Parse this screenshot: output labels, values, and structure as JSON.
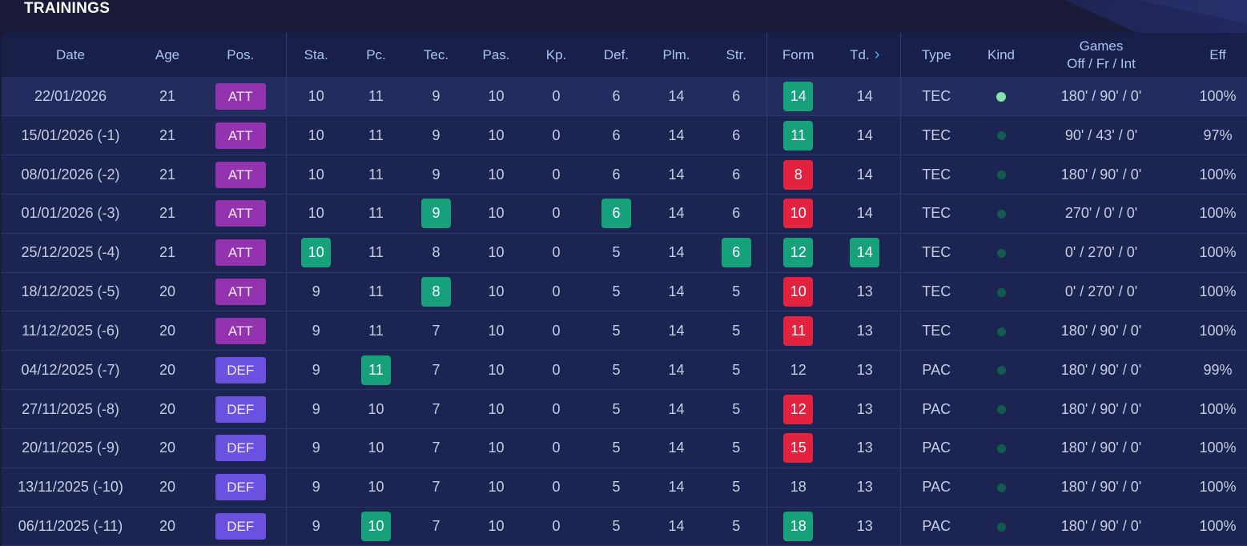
{
  "title": "TRAININGS",
  "headers": {
    "date": "Date",
    "age": "Age",
    "pos": "Pos.",
    "sta": "Sta.",
    "pc": "Pc.",
    "tec": "Tec.",
    "pas": "Pas.",
    "kp": "Kp.",
    "def": "Def.",
    "plm": "Plm.",
    "str": "Str.",
    "form": "Form",
    "td": "Td.",
    "type": "Type",
    "kind": "Kind",
    "games_line1": "Games",
    "games_line2": "Off / Fr / Int",
    "eff": "Eff"
  },
  "colors": {
    "att": "#9333b0",
    "def": "#6a51e0",
    "up": "#17a17a",
    "down": "#e3223f",
    "kind_active": "#86e2ad",
    "kind_inactive": "#145c4d"
  },
  "rows": [
    {
      "date": "22/01/2026",
      "age": "21",
      "pos": "ATT",
      "sta": "10",
      "pc": "11",
      "tec": "9",
      "pas": "10",
      "kp": "0",
      "def": "6",
      "plm": "14",
      "str": "6",
      "form": "14",
      "td": "14",
      "type": "TEC",
      "games": "180' / 90' / 0'",
      "eff": "100%",
      "kind": "active",
      "hl": {
        "form": "g"
      }
    },
    {
      "date": "15/01/2026 (-1)",
      "age": "21",
      "pos": "ATT",
      "sta": "10",
      "pc": "11",
      "tec": "9",
      "pas": "10",
      "kp": "0",
      "def": "6",
      "plm": "14",
      "str": "6",
      "form": "11",
      "td": "14",
      "type": "TEC",
      "games": "90' / 43' / 0'",
      "eff": "97%",
      "kind": "inactive",
      "hl": {
        "form": "g"
      }
    },
    {
      "date": "08/01/2026 (-2)",
      "age": "21",
      "pos": "ATT",
      "sta": "10",
      "pc": "11",
      "tec": "9",
      "pas": "10",
      "kp": "0",
      "def": "6",
      "plm": "14",
      "str": "6",
      "form": "8",
      "td": "14",
      "type": "TEC",
      "games": "180' / 90' / 0'",
      "eff": "100%",
      "kind": "inactive",
      "hl": {
        "form": "r"
      }
    },
    {
      "date": "01/01/2026 (-3)",
      "age": "21",
      "pos": "ATT",
      "sta": "10",
      "pc": "11",
      "tec": "9",
      "pas": "10",
      "kp": "0",
      "def": "6",
      "plm": "14",
      "str": "6",
      "form": "10",
      "td": "14",
      "type": "TEC",
      "games": "270' / 0' / 0'",
      "eff": "100%",
      "kind": "inactive",
      "hl": {
        "tec": "g",
        "def": "g",
        "form": "r"
      }
    },
    {
      "date": "25/12/2025 (-4)",
      "age": "21",
      "pos": "ATT",
      "sta": "10",
      "pc": "11",
      "tec": "8",
      "pas": "10",
      "kp": "0",
      "def": "5",
      "plm": "14",
      "str": "6",
      "form": "12",
      "td": "14",
      "type": "TEC",
      "games": "0' / 270' / 0'",
      "eff": "100%",
      "kind": "inactive",
      "hl": {
        "sta": "g",
        "str": "g",
        "form": "g",
        "td": "g"
      }
    },
    {
      "date": "18/12/2025 (-5)",
      "age": "20",
      "pos": "ATT",
      "sta": "9",
      "pc": "11",
      "tec": "8",
      "pas": "10",
      "kp": "0",
      "def": "5",
      "plm": "14",
      "str": "5",
      "form": "10",
      "td": "13",
      "type": "TEC",
      "games": "0' / 270' / 0'",
      "eff": "100%",
      "kind": "inactive",
      "hl": {
        "tec": "g",
        "form": "r"
      }
    },
    {
      "date": "11/12/2025 (-6)",
      "age": "20",
      "pos": "ATT",
      "sta": "9",
      "pc": "11",
      "tec": "7",
      "pas": "10",
      "kp": "0",
      "def": "5",
      "plm": "14",
      "str": "5",
      "form": "11",
      "td": "13",
      "type": "TEC",
      "games": "180' / 90' / 0'",
      "eff": "100%",
      "kind": "inactive",
      "hl": {
        "form": "r"
      }
    },
    {
      "date": "04/12/2025 (-7)",
      "age": "20",
      "pos": "DEF",
      "sta": "9",
      "pc": "11",
      "tec": "7",
      "pas": "10",
      "kp": "0",
      "def": "5",
      "plm": "14",
      "str": "5",
      "form": "12",
      "td": "13",
      "type": "PAC",
      "games": "180' / 90' / 0'",
      "eff": "99%",
      "kind": "inactive",
      "hl": {
        "pc": "g"
      }
    },
    {
      "date": "27/11/2025 (-8)",
      "age": "20",
      "pos": "DEF",
      "sta": "9",
      "pc": "10",
      "tec": "7",
      "pas": "10",
      "kp": "0",
      "def": "5",
      "plm": "14",
      "str": "5",
      "form": "12",
      "td": "13",
      "type": "PAC",
      "games": "180' / 90' / 0'",
      "eff": "100%",
      "kind": "inactive",
      "hl": {
        "form": "r"
      }
    },
    {
      "date": "20/11/2025 (-9)",
      "age": "20",
      "pos": "DEF",
      "sta": "9",
      "pc": "10",
      "tec": "7",
      "pas": "10",
      "kp": "0",
      "def": "5",
      "plm": "14",
      "str": "5",
      "form": "15",
      "td": "13",
      "type": "PAC",
      "games": "180' / 90' / 0'",
      "eff": "100%",
      "kind": "inactive",
      "hl": {
        "form": "r"
      }
    },
    {
      "date": "13/11/2025 (-10)",
      "age": "20",
      "pos": "DEF",
      "sta": "9",
      "pc": "10",
      "tec": "7",
      "pas": "10",
      "kp": "0",
      "def": "5",
      "plm": "14",
      "str": "5",
      "form": "18",
      "td": "13",
      "type": "PAC",
      "games": "180' / 90' / 0'",
      "eff": "100%",
      "kind": "inactive",
      "hl": {}
    },
    {
      "date": "06/11/2025 (-11)",
      "age": "20",
      "pos": "DEF",
      "sta": "9",
      "pc": "10",
      "tec": "7",
      "pas": "10",
      "kp": "0",
      "def": "5",
      "plm": "14",
      "str": "5",
      "form": "18",
      "td": "13",
      "type": "PAC",
      "games": "180' / 90' / 0'",
      "eff": "100%",
      "kind": "inactive",
      "hl": {
        "pc": "g",
        "form": "g"
      }
    }
  ]
}
